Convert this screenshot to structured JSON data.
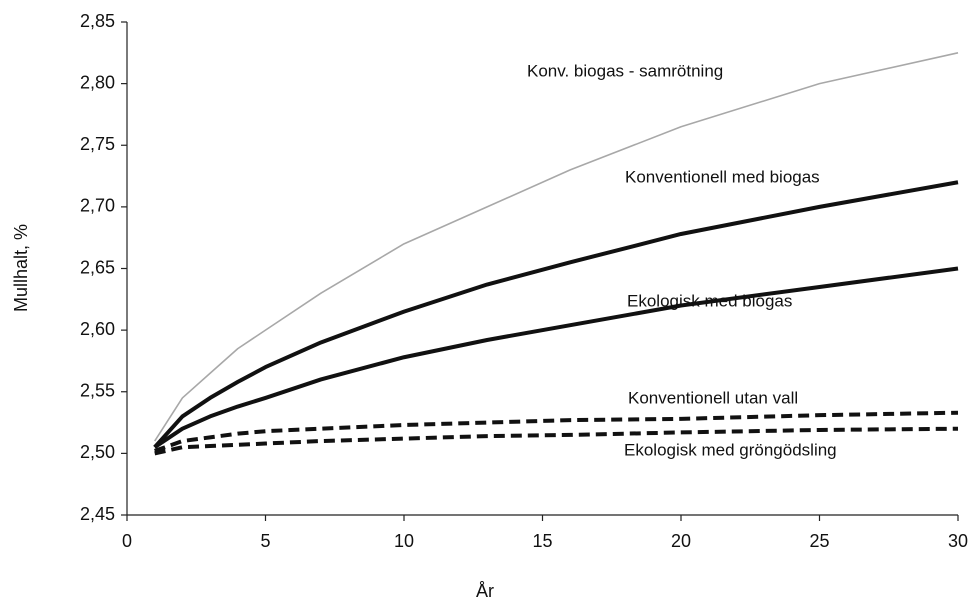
{
  "chart_data": {
    "type": "line",
    "y_label": "Mullhalt, %",
    "x_label": "År",
    "x": [
      1,
      2,
      3,
      4,
      5,
      7,
      10,
      13,
      16,
      20,
      25,
      30
    ],
    "xlim": [
      0,
      30
    ],
    "xticks": [
      0,
      5,
      10,
      15,
      20,
      25,
      30
    ],
    "ylim": [
      2.45,
      2.85
    ],
    "yticks": [
      {
        "value": 2.45,
        "label": "2,45"
      },
      {
        "value": 2.5,
        "label": "2,50"
      },
      {
        "value": 2.55,
        "label": "2,55"
      },
      {
        "value": 2.6,
        "label": "2,60"
      },
      {
        "value": 2.65,
        "label": "2,65"
      },
      {
        "value": 2.7,
        "label": "2,70"
      },
      {
        "value": 2.75,
        "label": "2,75"
      },
      {
        "value": 2.8,
        "label": "2,80"
      },
      {
        "value": 2.85,
        "label": "2,85"
      }
    ],
    "grid": false,
    "series": [
      {
        "name": "Konv. biogas - samrötning",
        "color": "#a8a8a8",
        "style": "solid",
        "values": [
          2.51,
          2.545,
          2.565,
          2.585,
          2.6,
          2.63,
          2.67,
          2.7,
          2.73,
          2.765,
          2.8,
          2.825
        ]
      },
      {
        "name": "Konventionell med biogas",
        "color": "#111111",
        "style": "solid",
        "values": [
          2.505,
          2.53,
          2.545,
          2.558,
          2.57,
          2.59,
          2.615,
          2.637,
          2.655,
          2.678,
          2.7,
          2.72
        ]
      },
      {
        "name": "Ekologisk med biogas",
        "color": "#111111",
        "style": "solid",
        "values": [
          2.505,
          2.52,
          2.53,
          2.538,
          2.545,
          2.56,
          2.578,
          2.592,
          2.604,
          2.62,
          2.635,
          2.65
        ]
      },
      {
        "name": "Konventionell utan vall",
        "color": "#111111",
        "style": "dashed",
        "values": [
          2.502,
          2.51,
          2.513,
          2.516,
          2.518,
          2.52,
          2.523,
          2.525,
          2.527,
          2.528,
          2.531,
          2.533
        ]
      },
      {
        "name": "Ekologisk med gröngödsling",
        "color": "#111111",
        "style": "dashed",
        "values": [
          2.5,
          2.505,
          2.506,
          2.507,
          2.508,
          2.51,
          2.512,
          2.514,
          2.515,
          2.517,
          2.519,
          2.52
        ]
      }
    ]
  }
}
